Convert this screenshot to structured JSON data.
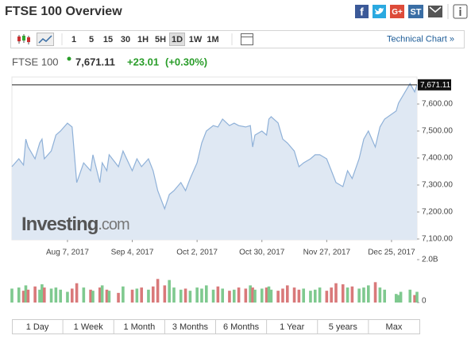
{
  "header": {
    "title": "FTSE 100 Overview",
    "share": [
      "f",
      "G+",
      "ST"
    ]
  },
  "toolbar": {
    "intervals": [
      "1",
      "5",
      "15",
      "30",
      "1H",
      "5H",
      "1D",
      "1W",
      "1M"
    ],
    "link": "Technical Chart »"
  },
  "quote": {
    "name": "FTSE 100",
    "last": "7,671.11",
    "change": "+23.01",
    "change_pct": "(+0.30%)"
  },
  "ranges": [
    "1 Day",
    "1 Week",
    "1 Month",
    "3 Months",
    "6 Months",
    "1 Year",
    "5 years",
    "Max"
  ],
  "chart_data": [
    {
      "type": "area",
      "color": "#8fb1d8",
      "fill": "#dfe8f3",
      "grid": false,
      "watermark": [
        "Investing",
        ".com"
      ],
      "last_value_label": "7,671.11",
      "x": [
        "2017-07-14",
        "2017-07-17",
        "2017-07-19",
        "2017-07-20",
        "2017-07-21",
        "2017-07-24",
        "2017-07-26",
        "2017-07-27",
        "2017-07-28",
        "2017-07-31",
        "2017-08-02",
        "2017-08-04",
        "2017-08-07",
        "2017-08-09",
        "2017-08-11",
        "2017-08-14",
        "2017-08-17",
        "2017-08-18",
        "2017-08-21",
        "2017-08-22",
        "2017-08-24",
        "2017-08-25",
        "2017-08-29",
        "2017-08-31",
        "2017-09-04",
        "2017-09-06",
        "2017-09-08",
        "2017-09-11",
        "2017-09-13",
        "2017-09-15",
        "2017-09-18",
        "2017-09-20",
        "2017-09-22",
        "2017-09-25",
        "2017-09-27",
        "2017-09-29",
        "2017-10-02",
        "2017-10-04",
        "2017-10-06",
        "2017-10-09",
        "2017-10-11",
        "2017-10-13",
        "2017-10-16",
        "2017-10-18",
        "2017-10-20",
        "2017-10-23",
        "2017-10-25",
        "2017-10-26",
        "2017-10-27",
        "2017-10-30",
        "2017-11-01",
        "2017-11-02",
        "2017-11-03",
        "2017-11-06",
        "2017-11-08",
        "2017-11-10",
        "2017-11-13",
        "2017-11-15",
        "2017-11-17",
        "2017-11-20",
        "2017-11-22",
        "2017-11-24",
        "2017-11-27",
        "2017-11-29",
        "2017-12-01",
        "2017-12-04",
        "2017-12-06",
        "2017-12-08",
        "2017-12-11",
        "2017-12-13",
        "2017-12-15",
        "2017-12-18",
        "2017-12-20",
        "2017-12-22",
        "2017-12-27",
        "2017-12-28",
        "2017-12-29",
        "2018-01-02",
        "2018-01-04",
        "2018-01-05"
      ],
      "values": [
        7368,
        7397,
        7374,
        7470,
        7441,
        7397,
        7456,
        7470,
        7397,
        7426,
        7485,
        7500,
        7529,
        7515,
        7309,
        7382,
        7353,
        7412,
        7309,
        7382,
        7353,
        7412,
        7368,
        7426,
        7353,
        7397,
        7368,
        7397,
        7353,
        7279,
        7212,
        7265,
        7279,
        7309,
        7279,
        7324,
        7382,
        7456,
        7500,
        7520,
        7515,
        7544,
        7520,
        7529,
        7520,
        7515,
        7520,
        7441,
        7485,
        7500,
        7485,
        7544,
        7553,
        7530,
        7470,
        7456,
        7426,
        7368,
        7382,
        7397,
        7412,
        7412,
        7397,
        7353,
        7309,
        7294,
        7353,
        7324,
        7397,
        7470,
        7500,
        7441,
        7515,
        7544,
        7574,
        7603,
        7618,
        7676,
        7645,
        7671.11
      ],
      "xlim": [
        "2017-07-14",
        "2018-01-05"
      ],
      "xticks": [
        {
          "value": "2017-08-07",
          "label": "Aug 7, 2017"
        },
        {
          "value": "2017-09-04",
          "label": "Sep 4, 2017"
        },
        {
          "value": "2017-10-02",
          "label": "Oct 2, 2017"
        },
        {
          "value": "2017-10-30",
          "label": "Oct 30, 2017"
        },
        {
          "value": "2017-11-27",
          "label": "Nov 27, 2017"
        },
        {
          "value": "2017-12-25",
          "label": "Dec 25, 2017"
        }
      ],
      "ylim": [
        7097,
        7700
      ],
      "yticks": [
        {
          "value": 7100,
          "label": "7,100.00"
        },
        {
          "value": 7200,
          "label": "7,200.00"
        },
        {
          "value": 7300,
          "label": "7,300.00"
        },
        {
          "value": 7400,
          "label": "7,400.00"
        },
        {
          "value": 7500,
          "label": "7,500.00"
        },
        {
          "value": 7600,
          "label": "7,600.00"
        }
      ]
    },
    {
      "type": "bar",
      "up_color": "#7fc98f",
      "down_color": "#d9797a",
      "x": [
        "2017-07-14",
        "2017-07-17",
        "2017-07-19",
        "2017-07-20",
        "2017-07-21",
        "2017-07-24",
        "2017-07-26",
        "2017-07-27",
        "2017-07-28",
        "2017-07-31",
        "2017-08-02",
        "2017-08-04",
        "2017-08-07",
        "2017-08-09",
        "2017-08-11",
        "2017-08-14",
        "2017-08-17",
        "2017-08-18",
        "2017-08-21",
        "2017-08-22",
        "2017-08-24",
        "2017-08-25",
        "2017-08-29",
        "2017-08-31",
        "2017-09-04",
        "2017-09-06",
        "2017-09-08",
        "2017-09-11",
        "2017-09-13",
        "2017-09-15",
        "2017-09-18",
        "2017-09-20",
        "2017-09-22",
        "2017-09-25",
        "2017-09-27",
        "2017-09-29",
        "2017-10-02",
        "2017-10-04",
        "2017-10-06",
        "2017-10-09",
        "2017-10-11",
        "2017-10-13",
        "2017-10-16",
        "2017-10-18",
        "2017-10-20",
        "2017-10-23",
        "2017-10-25",
        "2017-10-26",
        "2017-10-27",
        "2017-10-30",
        "2017-11-01",
        "2017-11-02",
        "2017-11-03",
        "2017-11-06",
        "2017-11-08",
        "2017-11-10",
        "2017-11-13",
        "2017-11-15",
        "2017-11-17",
        "2017-11-20",
        "2017-11-22",
        "2017-11-24",
        "2017-11-27",
        "2017-11-29",
        "2017-12-01",
        "2017-12-04",
        "2017-12-06",
        "2017-12-08",
        "2017-12-11",
        "2017-12-13",
        "2017-12-15",
        "2017-12-18",
        "2017-12-20",
        "2017-12-22",
        "2017-12-27",
        "2017-12-28",
        "2017-12-29",
        "2018-01-02",
        "2018-01-04",
        "2018-01-05"
      ],
      "values": [
        650000000.0,
        700000000.0,
        550000000.0,
        800000000.0,
        600000000.0,
        750000000.0,
        600000000.0,
        850000000.0,
        700000000.0,
        650000000.0,
        700000000.0,
        600000000.0,
        500000000.0,
        650000000.0,
        900000000.0,
        700000000.0,
        600000000.0,
        550000000.0,
        700000000.0,
        800000000.0,
        600000000.0,
        550000000.0,
        450000000.0,
        750000000.0,
        600000000.0,
        650000000.0,
        700000000.0,
        600000000.0,
        750000000.0,
        1100000000.0,
        800000000.0,
        1050000000.0,
        700000000.0,
        600000000.0,
        650000000.0,
        550000000.0,
        700000000.0,
        650000000.0,
        800000000.0,
        600000000.0,
        750000000.0,
        650000000.0,
        550000000.0,
        600000000.0,
        700000000.0,
        650000000.0,
        800000000.0,
        700000000.0,
        600000000.0,
        650000000.0,
        700000000.0,
        750000000.0,
        600000000.0,
        550000000.0,
        650000000.0,
        800000000.0,
        700000000.0,
        600000000.0,
        650000000.0,
        550000000.0,
        600000000.0,
        700000000.0,
        550000000.0,
        700000000.0,
        900000000.0,
        850000000.0,
        700000000.0,
        750000000.0,
        650000000.0,
        700000000.0,
        800000000.0,
        950000000.0,
        700000000.0,
        600000000.0,
        400000000.0,
        350000000.0,
        500000000.0,
        600000000.0,
        350000000.0,
        500000000.0
      ],
      "xlim": [
        "2017-07-14",
        "2018-01-05"
      ],
      "ylim": [
        0,
        2000000000
      ],
      "yticks": [
        0,
        {
          "value": 2000000000,
          "label": "2.0B"
        }
      ]
    }
  ]
}
